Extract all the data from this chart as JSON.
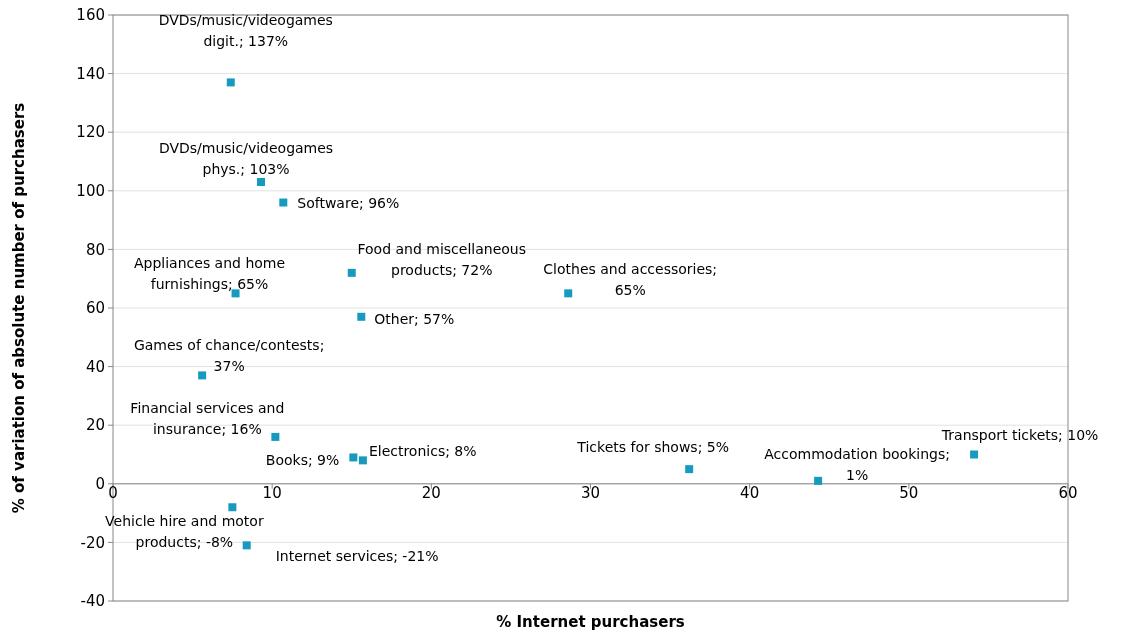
{
  "chart_data": {
    "type": "scatter",
    "xlabel": "% Internet purchasers",
    "ylabel": "% of variation of absolute number of purchasers",
    "x": [
      7.4,
      9.3,
      10.7,
      15.0,
      28.6,
      7.7,
      15.6,
      5.6,
      10.2,
      15.1,
      15.7,
      36.2,
      44.3,
      54.1,
      7.5,
      8.4
    ],
    "values": [
      137,
      103,
      96,
      72,
      65,
      65,
      57,
      37,
      16,
      9,
      8,
      5,
      1,
      10,
      -8,
      -21
    ],
    "value_labels": [
      "DVDs/music/videogames digit.; 137%",
      "DVDs/music/videogames phys.; 103%",
      "Software; 96%",
      "Food and miscellaneous products; 72%",
      "Clothes and accessories; 65%",
      "Appliances and home furnishings; 65%",
      "Other; 57%",
      "Games of chance/contests; 37%",
      "Financial services and insurance; 16%",
      "Books; 9%",
      "Electronics; 8%",
      "Tickets for shows; 5%",
      "Accommodation bookings; 1%",
      "Transport tickets; 10%",
      "Vehicle hire and motor products; -8%",
      "Internet services; -21%"
    ],
    "color": "#169bbf",
    "marker": "square",
    "xlim": [
      0,
      60
    ],
    "xticks": [
      0,
      10,
      20,
      30,
      40,
      50,
      60
    ],
    "ylim": [
      -40,
      160
    ],
    "yticks": [
      -40,
      -20,
      0,
      20,
      40,
      60,
      80,
      100,
      120,
      140,
      160
    ],
    "grid": "y"
  }
}
